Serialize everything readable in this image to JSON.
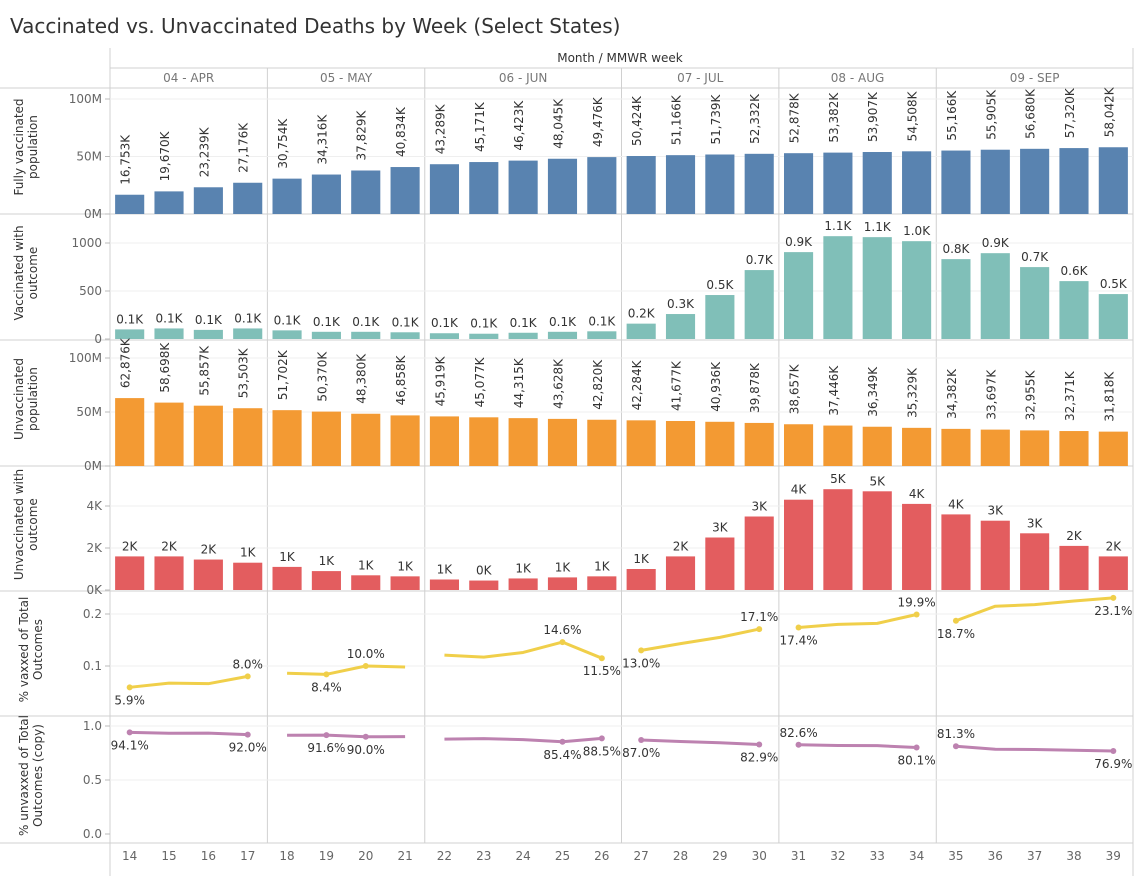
{
  "chart_data": {
    "type": "bar",
    "title": "Vaccinated vs. Unvaccinated Deaths by Week (Select States)",
    "column_header": "Month / MMWR week",
    "months": [
      {
        "label": "04 - APR",
        "weeks": [
          14,
          15,
          16,
          17
        ]
      },
      {
        "label": "05 - MAY",
        "weeks": [
          18,
          19,
          20,
          21
        ]
      },
      {
        "label": "06 - JUN",
        "weeks": [
          22,
          23,
          24,
          25,
          26
        ]
      },
      {
        "label": "07 - JUL",
        "weeks": [
          27,
          28,
          29,
          30
        ]
      },
      {
        "label": "08 - AUG",
        "weeks": [
          31,
          32,
          33,
          34
        ]
      },
      {
        "label": "09 - SEP",
        "weeks": [
          35,
          36,
          37,
          38,
          39
        ]
      }
    ],
    "weeks": [
      14,
      15,
      16,
      17,
      18,
      19,
      20,
      21,
      22,
      23,
      24,
      25,
      26,
      27,
      28,
      29,
      30,
      31,
      32,
      33,
      34,
      35,
      36,
      37,
      38,
      39
    ],
    "rows": [
      {
        "name": "Fully vaccinated population",
        "title_lines": [
          "Fully vaccinated",
          "population"
        ],
        "type": "bar",
        "color": "#5983b0",
        "unit": "thousands",
        "ticks": [
          {
            "v": 0,
            "label": "0M"
          },
          {
            "v": 50000,
            "label": "50M"
          },
          {
            "v": 100000,
            "label": "100M"
          }
        ],
        "values": [
          16753,
          19670,
          23239,
          27176,
          30754,
          34316,
          37829,
          40834,
          43289,
          45171,
          46423,
          48045,
          49476,
          50424,
          51166,
          51739,
          52332,
          52878,
          53382,
          53907,
          54508,
          55166,
          55905,
          56680,
          57320,
          58042
        ],
        "labels": [
          "16,753K",
          "19,670K",
          "23,239K",
          "27,176K",
          "30,754K",
          "34,316K",
          "37,829K",
          "40,834K",
          "43,289K",
          "45,171K",
          "46,423K",
          "48,045K",
          "49,476K",
          "50,424K",
          "51,166K",
          "51,739K",
          "52,332K",
          "52,878K",
          "53,382K",
          "53,907K",
          "54,508K",
          "55,166K",
          "55,905K",
          "56,680K",
          "57,320K",
          "58,042K"
        ]
      },
      {
        "name": "Vaccinated with outcome",
        "title_lines": [
          "Vaccinated with",
          "outcome"
        ],
        "type": "bar",
        "color": "#80bfb8",
        "ticks": [
          {
            "v": 0,
            "label": "0"
          },
          {
            "v": 500,
            "label": "500"
          },
          {
            "v": 1000,
            "label": "1000"
          }
        ],
        "values": [
          100,
          110,
          95,
          110,
          90,
          75,
          75,
          70,
          60,
          55,
          65,
          75,
          80,
          160,
          260,
          458,
          718,
          905,
          1071,
          1061,
          1019,
          832,
          894,
          749,
          603,
          468
        ],
        "labels": [
          "0.1K",
          "0.1K",
          "0.1K",
          "0.1K",
          "0.1K",
          "0.1K",
          "0.1K",
          "0.1K",
          "0.1K",
          "0.1K",
          "0.1K",
          "0.1K",
          "0.1K",
          "0.2K",
          "0.3K",
          "0.5K",
          "0.7K",
          "0.9K",
          "1.1K",
          "1.1K",
          "1.0K",
          "0.8K",
          "0.9K",
          "0.7K",
          "0.6K",
          "0.5K"
        ]
      },
      {
        "name": "Unvaccinated population",
        "title_lines": [
          "Unvaccinated",
          "population"
        ],
        "type": "bar",
        "color": "#f39a33",
        "unit": "thousands",
        "ticks": [
          {
            "v": 0,
            "label": "0M"
          },
          {
            "v": 50000,
            "label": "50M"
          },
          {
            "v": 100000,
            "label": "100M"
          }
        ],
        "values": [
          62876,
          58698,
          55857,
          53503,
          51702,
          50370,
          48380,
          46858,
          45919,
          45077,
          44315,
          43628,
          42820,
          42284,
          41677,
          40936,
          39878,
          38657,
          37446,
          36349,
          35329,
          34382,
          33697,
          32955,
          32371,
          31818
        ],
        "labels": [
          "62,876K",
          "58,698K",
          "55,857K",
          "53,503K",
          "51,702K",
          "50,370K",
          "48,380K",
          "46,858K",
          "45,919K",
          "45,077K",
          "44,315K",
          "43,628K",
          "42,820K",
          "42,284K",
          "41,677K",
          "40,936K",
          "39,878K",
          "38,657K",
          "37,446K",
          "36,349K",
          "35,329K",
          "34,382K",
          "33,697K",
          "32,955K",
          "32,371K",
          "31,818K"
        ]
      },
      {
        "name": "Unvaccinated with outcome",
        "title_lines": [
          "Unvaccinated with",
          "outcome"
        ],
        "type": "bar",
        "color": "#e35d5f",
        "ticks": [
          {
            "v": 0,
            "label": "0K"
          },
          {
            "v": 2000,
            "label": "2K"
          },
          {
            "v": 4000,
            "label": "4K"
          }
        ],
        "values": [
          1600,
          1600,
          1450,
          1300,
          1100,
          900,
          700,
          650,
          500,
          450,
          550,
          600,
          650,
          1000,
          1600,
          2500,
          3500,
          4300,
          4800,
          4700,
          4100,
          3600,
          3300,
          2700,
          2100,
          1600
        ],
        "labels": [
          "2K",
          "2K",
          "2K",
          "1K",
          "1K",
          "1K",
          "1K",
          "1K",
          "1K",
          "0K",
          "1K",
          "1K",
          "1K",
          "1K",
          "2K",
          "3K",
          "3K",
          "4K",
          "5K",
          "5K",
          "4K",
          "4K",
          "3K",
          "3K",
          "2K",
          "2K"
        ]
      },
      {
        "name": "% vaxxed of Total Outcomes",
        "title_lines": [
          "% vaxxed of Total",
          "Outcomes"
        ],
        "type": "line",
        "color": "#f0cf4a",
        "ticks": [
          {
            "v": 10,
            "label": "0.1"
          },
          {
            "v": 20,
            "label": "0.2"
          }
        ],
        "values": [
          5.9,
          6.7,
          6.6,
          8.0,
          8.6,
          8.4,
          10.0,
          9.8,
          12.1,
          11.7,
          12.6,
          14.6,
          11.5,
          13.0,
          14.3,
          15.5,
          17.1,
          17.4,
          18.0,
          18.2,
          19.9,
          18.7,
          21.5,
          21.8,
          22.5,
          23.1
        ],
        "labels": [
          "5.9%",
          null,
          null,
          "8.0%",
          null,
          "8.4%",
          "10.0%",
          null,
          null,
          null,
          null,
          "14.6%",
          "11.5%",
          "13.0%",
          null,
          null,
          "17.1%",
          "17.4%",
          null,
          null,
          "19.9%",
          "18.7%",
          null,
          null,
          null,
          "23.1%"
        ]
      },
      {
        "name": "% unvaxxed of Total Outcomes (copy)",
        "title_lines": [
          "% unvaxxed of Total",
          "Outcomes (copy)"
        ],
        "type": "line",
        "color": "#bd82b0",
        "ticks": [
          {
            "v": 0,
            "label": "0.0"
          },
          {
            "v": 50,
            "label": "0.5"
          },
          {
            "v": 100,
            "label": "1.0"
          }
        ],
        "values": [
          94.1,
          93.3,
          93.4,
          92.0,
          91.4,
          91.6,
          90.0,
          90.2,
          87.9,
          88.3,
          87.4,
          85.4,
          88.5,
          87.0,
          85.7,
          84.5,
          82.9,
          82.6,
          82.0,
          81.8,
          80.1,
          81.3,
          78.5,
          78.2,
          77.5,
          76.9
        ],
        "labels": [
          "94.1%",
          null,
          null,
          "92.0%",
          null,
          "91.6%",
          "90.0%",
          null,
          null,
          null,
          null,
          "85.4%",
          "88.5%",
          "87.0%",
          null,
          null,
          "82.9%",
          "82.6%",
          null,
          null,
          "80.1%",
          "81.3%",
          null,
          null,
          null,
          "76.9%"
        ]
      }
    ]
  }
}
